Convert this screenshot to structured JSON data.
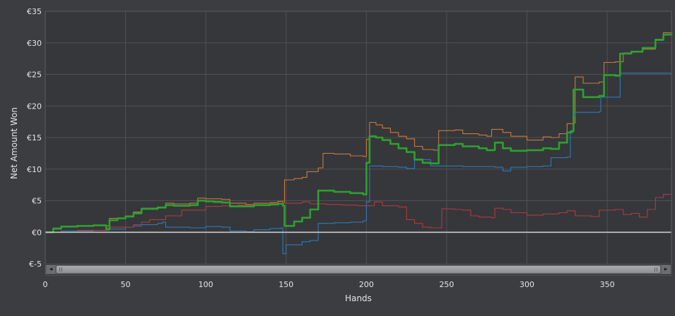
{
  "chart_data": {
    "type": "line",
    "title": "",
    "xlabel": "Hands",
    "ylabel": "Net Amount Won",
    "xlim": [
      0,
      390
    ],
    "ylim": [
      -5,
      35
    ],
    "x_ticks": [
      0,
      50,
      100,
      150,
      200,
      250,
      300,
      350
    ],
    "y_ticks": [
      -5,
      0,
      5,
      10,
      15,
      20,
      25,
      30,
      35
    ],
    "y_tick_labels": [
      "€-5",
      "€0",
      "€5",
      "€10",
      "€15",
      "€20",
      "€25",
      "€30",
      "€35"
    ],
    "grid": true,
    "legend": "none",
    "series": [
      {
        "color": "#cc7a3a",
        "points": [
          [
            0,
            0
          ],
          [
            5,
            0.5
          ],
          [
            10,
            0.9
          ],
          [
            20,
            1.0
          ],
          [
            30,
            1.1
          ],
          [
            38,
            1.0
          ],
          [
            40,
            2.2
          ],
          [
            50,
            2.6
          ],
          [
            55,
            3.2
          ],
          [
            60,
            3.8
          ],
          [
            70,
            4.0
          ],
          [
            75,
            4.6
          ],
          [
            80,
            4.5
          ],
          [
            90,
            4.6
          ],
          [
            95,
            5.4
          ],
          [
            100,
            5.3
          ],
          [
            110,
            5.2
          ],
          [
            115,
            4.6
          ],
          [
            125,
            4.4
          ],
          [
            130,
            4.6
          ],
          [
            140,
            4.7
          ],
          [
            145,
            4.9
          ],
          [
            148,
            4.6
          ],
          [
            149,
            8.3
          ],
          [
            155,
            8.5
          ],
          [
            160,
            8.7
          ],
          [
            163,
            9.6
          ],
          [
            170,
            10.2
          ],
          [
            173,
            12.5
          ],
          [
            180,
            12.4
          ],
          [
            190,
            12.1
          ],
          [
            198,
            12.0
          ],
          [
            200,
            14.7
          ],
          [
            202,
            17.4
          ],
          [
            206,
            17.0
          ],
          [
            210,
            16.5
          ],
          [
            215,
            15.8
          ],
          [
            220,
            15.2
          ],
          [
            225,
            14.8
          ],
          [
            230,
            13.6
          ],
          [
            235,
            13.1
          ],
          [
            242,
            13.0
          ],
          [
            245,
            16.1
          ],
          [
            255,
            16.2
          ],
          [
            260,
            15.6
          ],
          [
            270,
            15.4
          ],
          [
            275,
            15.2
          ],
          [
            278,
            16.3
          ],
          [
            285,
            15.8
          ],
          [
            290,
            15.2
          ],
          [
            300,
            14.6
          ],
          [
            310,
            15.1
          ],
          [
            315,
            15.0
          ],
          [
            320,
            15.6
          ],
          [
            325,
            17.2
          ],
          [
            329,
            17.3
          ],
          [
            330,
            24.6
          ],
          [
            335,
            23.6
          ],
          [
            345,
            23.8
          ],
          [
            348,
            26.9
          ],
          [
            355,
            27.0
          ],
          [
            360,
            28.4
          ],
          [
            365,
            28.6
          ],
          [
            372,
            29.0
          ],
          [
            380,
            30.4
          ],
          [
            385,
            31.6
          ],
          [
            390,
            31.7
          ]
        ]
      },
      {
        "color": "#2e7ab6",
        "points": [
          [
            0,
            0
          ],
          [
            10,
            0.2
          ],
          [
            30,
            0.3
          ],
          [
            40,
            0.5
          ],
          [
            50,
            0.8
          ],
          [
            55,
            1.0
          ],
          [
            60,
            1.2
          ],
          [
            70,
            1.4
          ],
          [
            73,
            1.6
          ],
          [
            75,
            0.8
          ],
          [
            90,
            0.7
          ],
          [
            100,
            0.9
          ],
          [
            110,
            0.8
          ],
          [
            115,
            0.2
          ],
          [
            125,
            0.1
          ],
          [
            130,
            0.4
          ],
          [
            140,
            0.6
          ],
          [
            147,
            0.7
          ],
          [
            148,
            -3.4
          ],
          [
            150,
            -2.0
          ],
          [
            160,
            -1.5
          ],
          [
            165,
            -1.3
          ],
          [
            170,
            1.4
          ],
          [
            180,
            1.5
          ],
          [
            190,
            1.6
          ],
          [
            198,
            1.8
          ],
          [
            200,
            4.8
          ],
          [
            202,
            10.5
          ],
          [
            210,
            10.4
          ],
          [
            220,
            10.3
          ],
          [
            225,
            10.1
          ],
          [
            230,
            11.6
          ],
          [
            235,
            11.5
          ],
          [
            240,
            10.5
          ],
          [
            260,
            10.4
          ],
          [
            280,
            10.3
          ],
          [
            285,
            9.7
          ],
          [
            290,
            10.3
          ],
          [
            300,
            10.4
          ],
          [
            310,
            10.5
          ],
          [
            315,
            11.8
          ],
          [
            325,
            11.9
          ],
          [
            327,
            16.1
          ],
          [
            329,
            18.3
          ],
          [
            330,
            19.0
          ],
          [
            345,
            19.1
          ],
          [
            346,
            21.4
          ],
          [
            355,
            21.4
          ],
          [
            358,
            25.2
          ],
          [
            375,
            25.2
          ],
          [
            390,
            24.8
          ]
        ]
      },
      {
        "color": "#b33a3a",
        "points": [
          [
            0,
            0
          ],
          [
            20,
            0.3
          ],
          [
            40,
            0.8
          ],
          [
            55,
            1.2
          ],
          [
            60,
            1.6
          ],
          [
            65,
            2.0
          ],
          [
            75,
            2.6
          ],
          [
            85,
            3.5
          ],
          [
            100,
            4.1
          ],
          [
            110,
            4.2
          ],
          [
            120,
            4.3
          ],
          [
            130,
            4.4
          ],
          [
            140,
            4.6
          ],
          [
            150,
            4.6
          ],
          [
            160,
            4.8
          ],
          [
            165,
            4.5
          ],
          [
            175,
            4.4
          ],
          [
            185,
            4.3
          ],
          [
            195,
            4.2
          ],
          [
            205,
            4.8
          ],
          [
            210,
            4.2
          ],
          [
            220,
            4.0
          ],
          [
            225,
            2.0
          ],
          [
            230,
            1.4
          ],
          [
            235,
            0.8
          ],
          [
            240,
            0.7
          ],
          [
            246,
            0.7
          ],
          [
            247,
            3.7
          ],
          [
            255,
            3.6
          ],
          [
            260,
            3.5
          ],
          [
            265,
            2.6
          ],
          [
            270,
            2.4
          ],
          [
            278,
            2.3
          ],
          [
            280,
            3.8
          ],
          [
            285,
            3.6
          ],
          [
            290,
            3.1
          ],
          [
            300,
            2.7
          ],
          [
            310,
            2.9
          ],
          [
            320,
            3.1
          ],
          [
            325,
            3.4
          ],
          [
            330,
            2.6
          ],
          [
            340,
            2.5
          ],
          [
            345,
            3.5
          ],
          [
            355,
            3.6
          ],
          [
            360,
            2.8
          ],
          [
            365,
            3.0
          ],
          [
            370,
            2.4
          ],
          [
            375,
            3.6
          ],
          [
            380,
            5.5
          ],
          [
            385,
            6.0
          ],
          [
            390,
            7.0
          ]
        ]
      },
      {
        "color": "#2ea02e",
        "points": [
          [
            0,
            0
          ],
          [
            5,
            0.6
          ],
          [
            10,
            0.9
          ],
          [
            20,
            1.0
          ],
          [
            30,
            1.1
          ],
          [
            38,
            0.5
          ],
          [
            40,
            1.9
          ],
          [
            45,
            2.2
          ],
          [
            50,
            2.5
          ],
          [
            55,
            3.0
          ],
          [
            60,
            3.7
          ],
          [
            70,
            3.9
          ],
          [
            75,
            4.3
          ],
          [
            80,
            4.2
          ],
          [
            90,
            4.3
          ],
          [
            95,
            5.0
          ],
          [
            100,
            4.9
          ],
          [
            105,
            4.8
          ],
          [
            110,
            4.7
          ],
          [
            115,
            4.1
          ],
          [
            125,
            4.1
          ],
          [
            130,
            4.3
          ],
          [
            140,
            4.4
          ],
          [
            145,
            4.5
          ],
          [
            148,
            4.2
          ],
          [
            149,
            1.0
          ],
          [
            155,
            1.7
          ],
          [
            160,
            2.3
          ],
          [
            165,
            3.6
          ],
          [
            170,
            6.6
          ],
          [
            180,
            6.4
          ],
          [
            190,
            6.2
          ],
          [
            198,
            6.0
          ],
          [
            200,
            11.0
          ],
          [
            202,
            15.2
          ],
          [
            206,
            15.0
          ],
          [
            210,
            14.6
          ],
          [
            215,
            14.0
          ],
          [
            220,
            13.3
          ],
          [
            225,
            12.7
          ],
          [
            230,
            11.5
          ],
          [
            235,
            11.0
          ],
          [
            240,
            10.9
          ],
          [
            245,
            13.8
          ],
          [
            255,
            14.0
          ],
          [
            260,
            13.6
          ],
          [
            270,
            13.3
          ],
          [
            275,
            13.0
          ],
          [
            280,
            14.2
          ],
          [
            285,
            13.3
          ],
          [
            290,
            12.9
          ],
          [
            300,
            13.0
          ],
          [
            310,
            13.3
          ],
          [
            315,
            13.2
          ],
          [
            320,
            14.2
          ],
          [
            325,
            15.8
          ],
          [
            328,
            16.0
          ],
          [
            329,
            22.6
          ],
          [
            335,
            21.4
          ],
          [
            345,
            21.6
          ],
          [
            348,
            24.9
          ],
          [
            355,
            24.8
          ],
          [
            358,
            28.3
          ],
          [
            365,
            28.6
          ],
          [
            372,
            29.2
          ],
          [
            380,
            30.5
          ],
          [
            385,
            31.3
          ],
          [
            390,
            31.6
          ]
        ]
      },
      {
        "color": "#c8c8c8",
        "points": [
          [
            0,
            0
          ],
          [
            390,
            0
          ]
        ]
      }
    ]
  },
  "scrollbar": {
    "left_arrow": "◂",
    "right_arrow": "▸"
  }
}
